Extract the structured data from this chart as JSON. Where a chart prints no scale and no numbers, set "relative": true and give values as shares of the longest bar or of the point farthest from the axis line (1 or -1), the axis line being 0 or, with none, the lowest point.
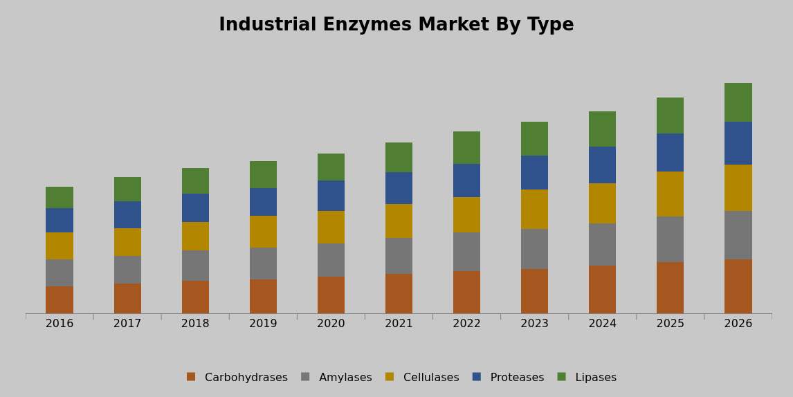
{
  "chart_data": {
    "type": "bar",
    "title": "Industrial Enzymes Market By Type",
    "categories": [
      "2016",
      "2017",
      "2018",
      "2019",
      "2020",
      "2021",
      "2022",
      "2023",
      "2024",
      "2025",
      "2026"
    ],
    "stacked": true,
    "relative": true,
    "legend": "bottom",
    "series": [
      {
        "name": "Carbohydrases",
        "color": "#a5571f",
        "values": [
          0.117,
          0.129,
          0.14,
          0.148,
          0.158,
          0.172,
          0.182,
          0.193,
          0.206,
          0.222,
          0.233
        ]
      },
      {
        "name": "Amylases",
        "color": "#767676",
        "values": [
          0.116,
          0.12,
          0.133,
          0.136,
          0.144,
          0.154,
          0.168,
          0.174,
          0.184,
          0.199,
          0.211
        ]
      },
      {
        "name": "Cellulases",
        "color": "#b38600",
        "values": [
          0.118,
          0.12,
          0.124,
          0.138,
          0.142,
          0.148,
          0.154,
          0.171,
          0.176,
          0.195,
          0.201
        ]
      },
      {
        "name": "Proteases",
        "color": "#2f528c",
        "values": [
          0.105,
          0.117,
          0.123,
          0.122,
          0.134,
          0.14,
          0.146,
          0.146,
          0.158,
          0.164,
          0.186
        ]
      },
      {
        "name": "Lipases",
        "color": "#507e32",
        "values": [
          0.093,
          0.105,
          0.111,
          0.118,
          0.117,
          0.127,
          0.141,
          0.147,
          0.153,
          0.157,
          0.169
        ]
      }
    ]
  }
}
